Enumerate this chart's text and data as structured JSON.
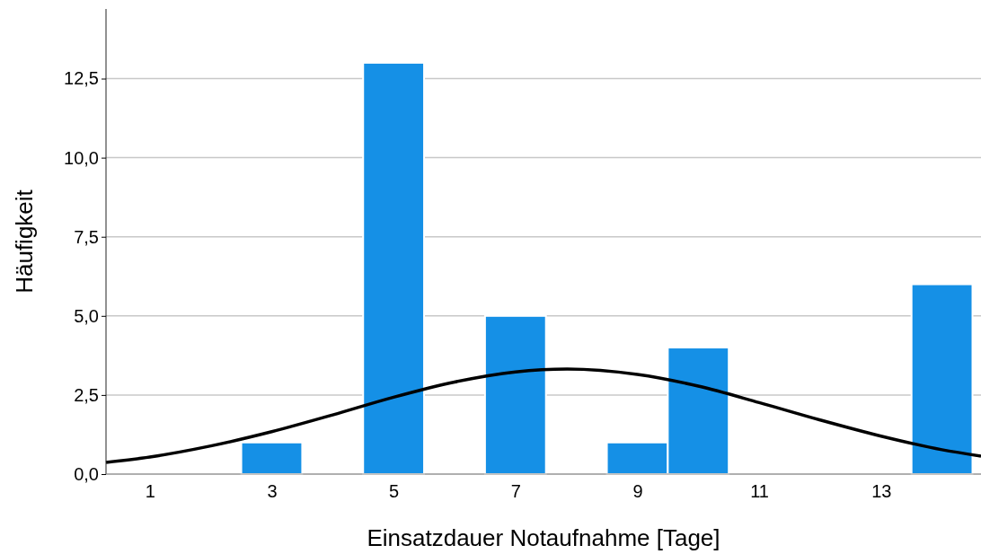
{
  "chart_data": {
    "type": "histogram",
    "xlabel": "Einsatzdauer Notaufnahme [Tage]",
    "ylabel": "Häufigkeit",
    "xlim": [
      0.28,
      14.64
    ],
    "xticks": [
      1,
      3,
      5,
      7,
      9,
      11,
      13
    ],
    "ylim": [
      0,
      14.7
    ],
    "yticks": [
      {
        "value": 0,
        "label": "0,0"
      },
      {
        "value": 2.5,
        "label": "2,5"
      },
      {
        "value": 5,
        "label": "5,0"
      },
      {
        "value": 7.5,
        "label": "7,5"
      },
      {
        "value": 10,
        "label": "10,0"
      },
      {
        "value": 12.5,
        "label": "12,5"
      }
    ],
    "grid": "y",
    "series": [
      {
        "color": "#1590e6",
        "bins": [
          2.5,
          3.5,
          4.5,
          5.5,
          6.5,
          7.5,
          8.5,
          9.5,
          10.5,
          11.5,
          12.5,
          13.5,
          14.5
        ],
        "values": [
          1,
          0,
          13,
          0,
          5,
          0,
          1,
          4,
          0,
          0,
          0,
          6
        ]
      },
      {
        "type": "line",
        "color": "#000000",
        "x": [
          0.28,
          1,
          2,
          3,
          4,
          5,
          6,
          7,
          7.85,
          9,
          10,
          11,
          12,
          13,
          14,
          14.64
        ],
        "values": [
          0.37,
          0.54,
          0.89,
          1.34,
          1.87,
          2.43,
          2.91,
          3.23,
          3.32,
          3.15,
          2.78,
          2.26,
          1.71,
          1.2,
          0.77,
          0.57
        ]
      }
    ]
  }
}
